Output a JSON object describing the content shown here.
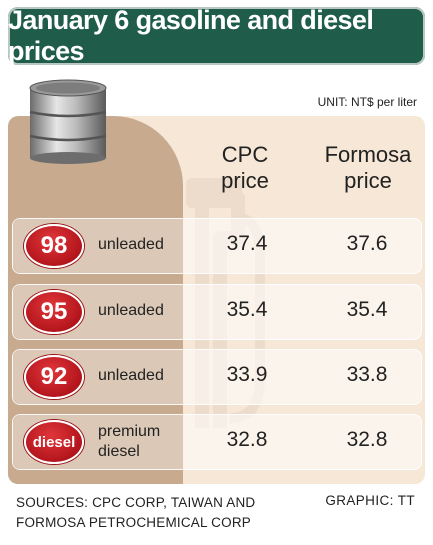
{
  "title": "January 6 gasoline and diesel prices",
  "unit_note": "UNIT: NT$ per liter",
  "columns": {
    "cpc": "CPC price",
    "formosa": "Formosa price"
  },
  "chart_data": {
    "type": "table",
    "title": "January 6 gasoline and diesel prices",
    "unit": "NT$ per liter",
    "columns": [
      "CPC price",
      "Formosa price"
    ],
    "rows": [
      {
        "badge": "98",
        "label": "unleaded",
        "cpc": 37.4,
        "formosa": 37.6
      },
      {
        "badge": "95",
        "label": "unleaded",
        "cpc": 35.4,
        "formosa": 35.4
      },
      {
        "badge": "92",
        "label": "unleaded",
        "cpc": 33.9,
        "formosa": 33.8
      },
      {
        "badge": "diesel",
        "label": "premium diesel",
        "cpc": 32.8,
        "formosa": 32.8
      }
    ]
  },
  "rows_display": [
    {
      "badge": "98",
      "label_line1": "unleaded",
      "label_line2": "",
      "cpc": "37.4",
      "formosa": "37.6"
    },
    {
      "badge": "95",
      "label_line1": "unleaded",
      "label_line2": "",
      "cpc": "35.4",
      "formosa": "35.4"
    },
    {
      "badge": "92",
      "label_line1": "unleaded",
      "label_line2": "",
      "cpc": "33.9",
      "formosa": "33.8"
    },
    {
      "badge": "diesel",
      "label_line1": "premium",
      "label_line2": "diesel",
      "cpc": "32.8",
      "formosa": "32.8"
    }
  ],
  "footer": {
    "sources_line1": "SOURCES: CPC CORP, TAIWAN AND",
    "sources_line2": "FORMOSA PETROCHEMICAL CORP",
    "credit": "GRAPHIC: TT"
  },
  "colors": {
    "title_bg": "#1f5c4a",
    "panel_light": "#f6e7d6",
    "panel_dark": "#c8ab8f",
    "badge_red": "#b3151c"
  },
  "icons": [
    "oil-barrel-icon",
    "fuel-pump-icon"
  ]
}
